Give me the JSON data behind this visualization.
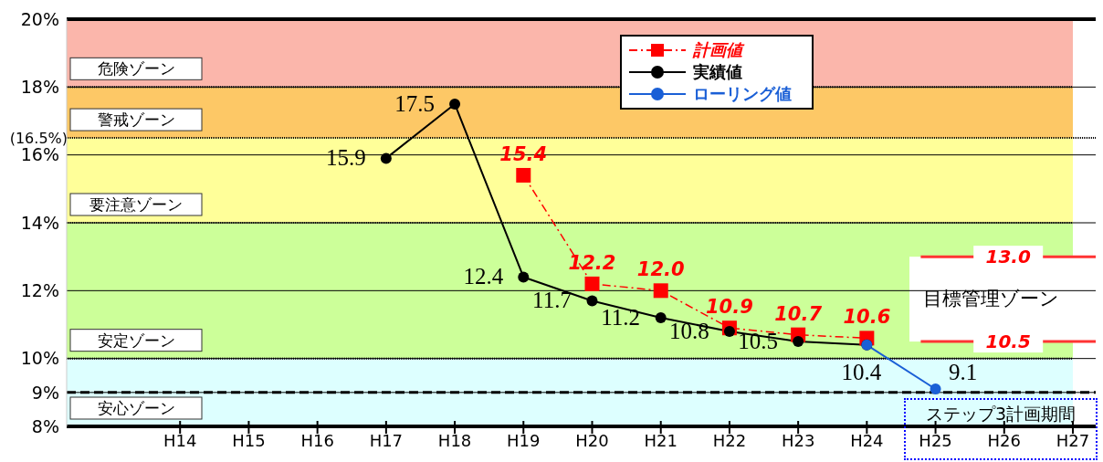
{
  "chart_data": {
    "type": "line",
    "categories": [
      null,
      "H14",
      "H15",
      "H16",
      "H17",
      "H18",
      "H19",
      "H20",
      "H21",
      "H22",
      "H23",
      "H24",
      "H25",
      "H26",
      "H27"
    ],
    "series": [
      {
        "name": "計画値",
        "color": "#ff0000",
        "marker": "square",
        "line_style": "dashed",
        "values": [
          null,
          null,
          null,
          null,
          null,
          null,
          15.4,
          12.2,
          12.0,
          10.9,
          10.7,
          10.6,
          null,
          null,
          null
        ],
        "value_labels": [
          null,
          null,
          null,
          null,
          null,
          null,
          "15.4",
          "12.2",
          "12.0",
          "10.9",
          "10.7",
          "10.6",
          null,
          null,
          null
        ]
      },
      {
        "name": "実績値",
        "color": "#000000",
        "marker": "circle",
        "line_style": "solid",
        "values": [
          null,
          null,
          null,
          null,
          15.9,
          17.5,
          12.4,
          11.7,
          11.2,
          10.8,
          10.5,
          10.4,
          null,
          null,
          null
        ],
        "value_labels": [
          null,
          null,
          null,
          null,
          "15.9",
          "17.5",
          "12.4",
          "11.7",
          "11.2",
          "10.8",
          "10.5",
          "10.4",
          null,
          null,
          null
        ]
      },
      {
        "name": "ローリング値",
        "color": "#1a5fd6",
        "marker": "circle",
        "line_style": "solid",
        "values": [
          null,
          null,
          null,
          null,
          null,
          null,
          null,
          null,
          null,
          null,
          null,
          10.4,
          9.1,
          null,
          null
        ],
        "value_labels": [
          null,
          null,
          null,
          null,
          null,
          null,
          null,
          null,
          null,
          null,
          null,
          null,
          "9.1",
          null,
          null
        ]
      }
    ],
    "ylim": [
      8,
      20
    ],
    "yticks": [
      {
        "value": 8,
        "label": "8%"
      },
      {
        "value": 9,
        "label": "9%"
      },
      {
        "value": 10,
        "label": "10%"
      },
      {
        "value": 12,
        "label": "12%"
      },
      {
        "value": 14,
        "label": "14%"
      },
      {
        "value": 16,
        "label": "16%"
      },
      {
        "value": 18,
        "label": "18%"
      },
      {
        "value": 20,
        "label": "20%"
      }
    ],
    "bands": [
      {
        "axis": "y",
        "from": 18,
        "to": 20,
        "label": "危険ゾーン",
        "color": "#fbb6ab"
      },
      {
        "axis": "y",
        "from": 16.5,
        "to": 18,
        "label": "警戒ゾーン",
        "color": "#fdc866"
      },
      {
        "axis": "y",
        "from": 14,
        "to": 16.5,
        "label": "要注意ゾーン",
        "color": "#ffff99"
      },
      {
        "axis": "y",
        "from": 10,
        "to": 14,
        "label": "安定ゾーン",
        "color": "#ccff99"
      },
      {
        "axis": "y",
        "from": 8,
        "to": 10,
        "label": "安心ゾーン",
        "color": "#ddffff"
      },
      {
        "axis": "y",
        "from": 10.5,
        "to": 13.0,
        "label": "目標管理ゾーン",
        "color": "#ffffff"
      }
    ],
    "ref_lines": [
      {
        "axis": "y",
        "value": 16.5,
        "label": "(16.5%)",
        "color": "#000000",
        "line_style": "dotted"
      },
      {
        "axis": "y",
        "value": 9,
        "color": "#000000",
        "line_style": "dashed"
      },
      {
        "axis": "y",
        "value": 13.0,
        "label": "13.0",
        "color": "#ff3333"
      },
      {
        "axis": "y",
        "value": 10.5,
        "label": "10.5",
        "color": "#ff3333"
      }
    ],
    "annotations": [
      "ステップ3計画期間"
    ],
    "grid": "y",
    "legend": "top right"
  }
}
